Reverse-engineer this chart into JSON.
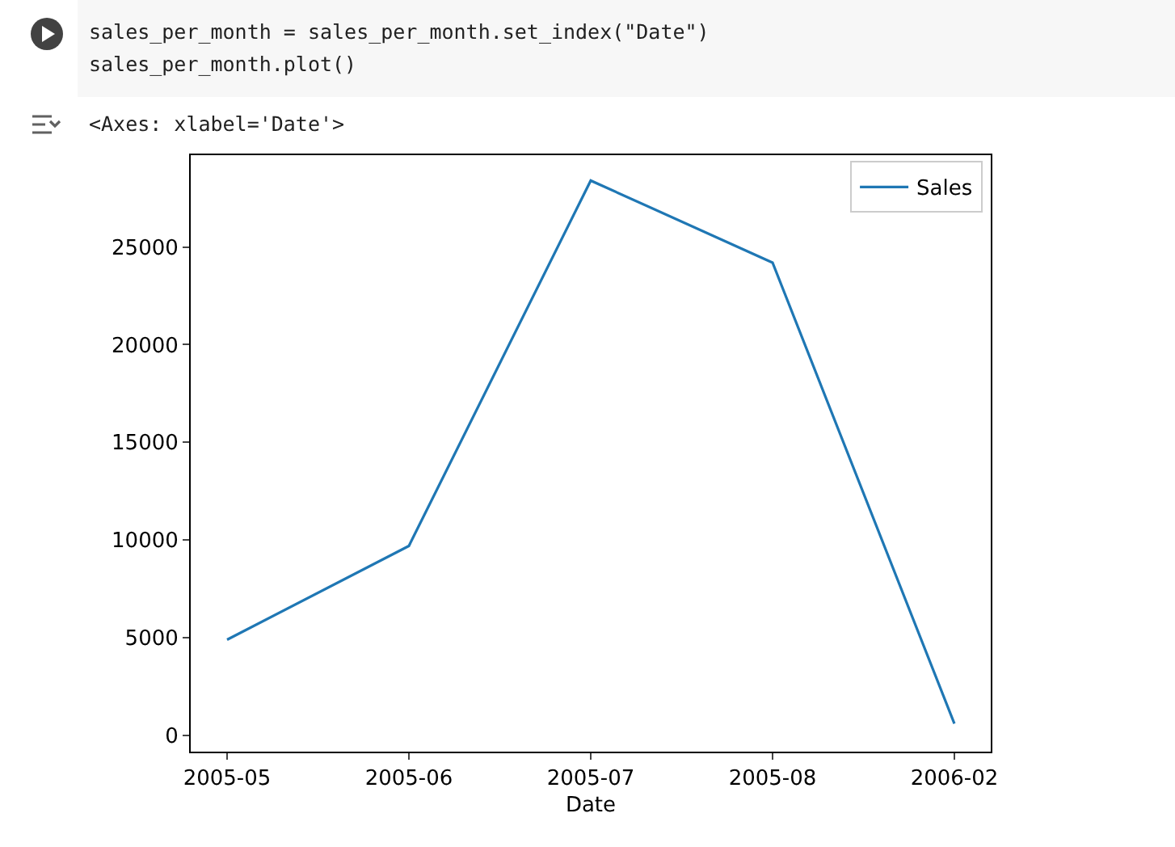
{
  "chart_data": {
    "type": "line",
    "xlabel": "Date",
    "annotations": [
      "sales_per_month = sales_per_month.set_index(\"Date\")",
      "sales_per_month.plot()",
      "<Axes: xlabel='Date'>"
    ],
    "categories": [
      "2005-05",
      "2005-06",
      "2005-07",
      "2005-08",
      "2006-02"
    ],
    "series": [
      {
        "name": "Sales",
        "color": "#1f77b4",
        "values": [
          4900,
          9700,
          28400,
          24200,
          600
        ]
      }
    ],
    "ylim": [
      -830,
      29700
    ],
    "yticks": [
      0,
      5000,
      10000,
      15000,
      20000,
      25000
    ],
    "grid": false,
    "legend": "top right",
    "marker": "none",
    "line_style": "solid"
  }
}
